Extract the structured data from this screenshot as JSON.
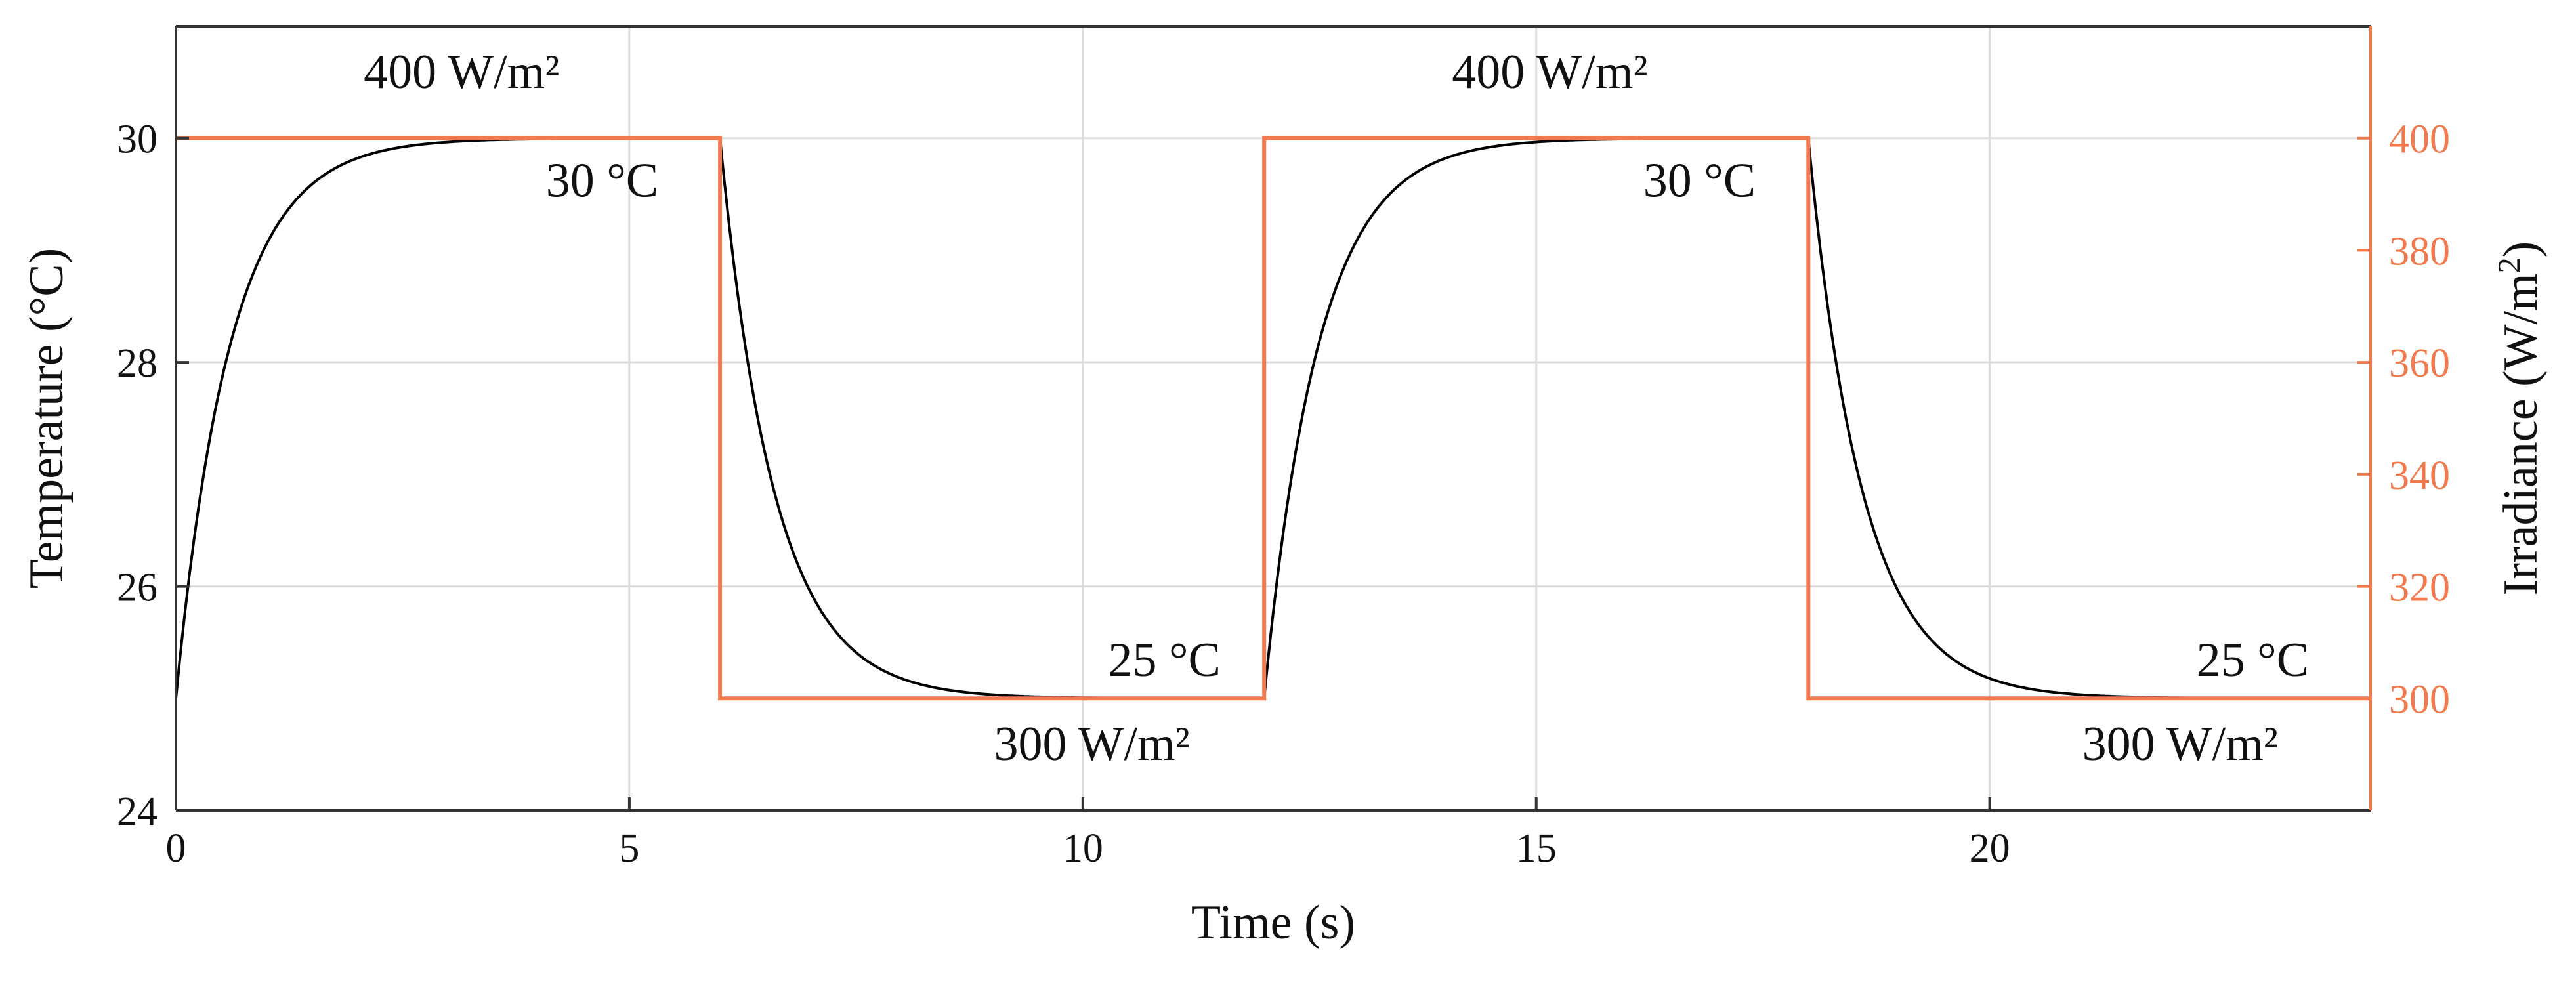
{
  "chart_data": {
    "type": "line",
    "x": {
      "label": "Time (s)",
      "range": [
        0,
        24.2
      ],
      "ticks": [
        0,
        5,
        10,
        15,
        20
      ],
      "tick_labels": [
        "0",
        "5",
        "10",
        "15",
        "20"
      ]
    },
    "y_left": {
      "label": "Temperature (°C)",
      "range": [
        24,
        31
      ],
      "ticks": [
        24,
        26,
        28,
        30
      ],
      "tick_labels": [
        "24",
        "26",
        "28",
        "30"
      ]
    },
    "y_right": {
      "label": "Irradiance (W/m",
      "label_superscript": "2",
      "label_suffix": ")",
      "range": [
        280,
        420
      ],
      "ticks": [
        300,
        320,
        340,
        360,
        380,
        400
      ],
      "tick_labels": [
        "300",
        "320",
        "340",
        "360",
        "380",
        "400"
      ]
    },
    "grid": true,
    "series": [
      {
        "name": "Temperature",
        "axis": "left",
        "color": "#000000",
        "model": "first-order exponential response to step changes",
        "time_constant_s": 0.6,
        "segments": [
          {
            "t_start": 0,
            "t_end": 6,
            "from": 25,
            "to": 30
          },
          {
            "t_start": 6,
            "t_end": 12,
            "from": 30,
            "to": 25
          },
          {
            "t_start": 12,
            "t_end": 18,
            "from": 25,
            "to": 30
          },
          {
            "t_start": 18,
            "t_end": 24.2,
            "from": 30,
            "to": 25
          }
        ]
      },
      {
        "name": "Irradiance",
        "axis": "right",
        "color": "#f07a4d",
        "type": "step",
        "points": [
          {
            "t": 0,
            "v": 400
          },
          {
            "t": 6,
            "v": 400
          },
          {
            "t": 6,
            "v": 300
          },
          {
            "t": 12,
            "v": 300
          },
          {
            "t": 12,
            "v": 400
          },
          {
            "t": 18,
            "v": 400
          },
          {
            "t": 18,
            "v": 300
          },
          {
            "t": 24.2,
            "v": 300
          }
        ]
      }
    ],
    "annotations": [
      {
        "text": "400 W/m²",
        "x": 3.15,
        "y": 30.45,
        "anchor": "middle"
      },
      {
        "text": "30 °C",
        "x": 4.7,
        "y": 29.48,
        "anchor": "middle"
      },
      {
        "text": "25 °C",
        "x": 10.9,
        "y": 25.2,
        "anchor": "middle"
      },
      {
        "text": "300 W/m²",
        "x": 10.1,
        "y": 24.45,
        "anchor": "middle"
      },
      {
        "text": "400 W/m²",
        "x": 15.15,
        "y": 30.45,
        "anchor": "middle"
      },
      {
        "text": "30 °C",
        "x": 16.8,
        "y": 29.48,
        "anchor": "middle"
      },
      {
        "text": "25 °C",
        "x": 22.9,
        "y": 25.2,
        "anchor": "middle"
      },
      {
        "text": "300 W/m²",
        "x": 22.1,
        "y": 24.45,
        "anchor": "middle"
      }
    ]
  }
}
